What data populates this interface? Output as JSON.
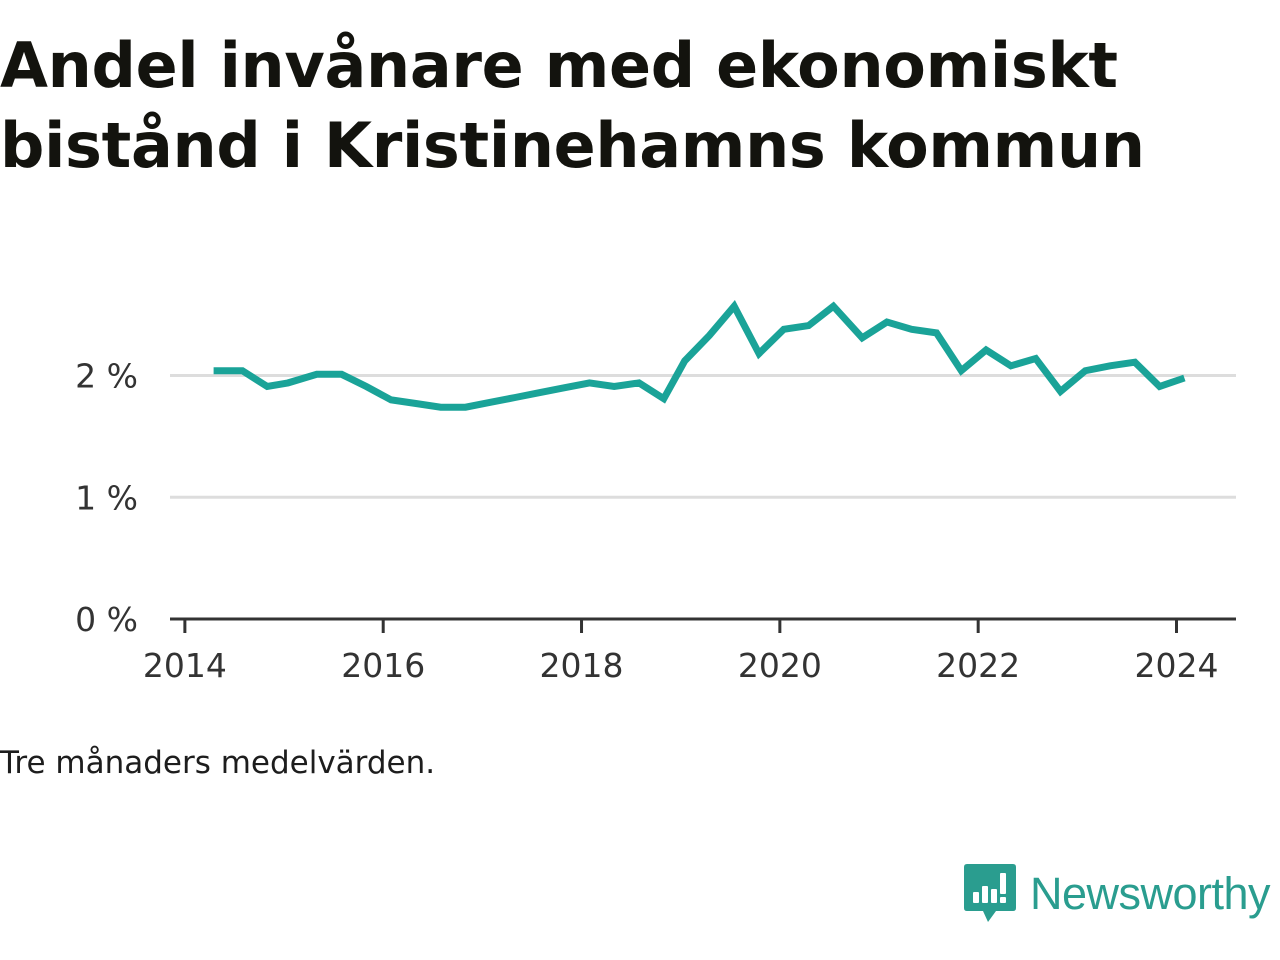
{
  "title": "Andel invånare med ekonomiskt bistånd i Kristinehamns kommun",
  "note": "Tre månaders medelvärden.",
  "brand": {
    "name": "Newsworthy",
    "icon": "newsworthy-logo-icon",
    "color": "#2a9d8f"
  },
  "colors": {
    "line": "#1aa398",
    "grid": "#dddddd",
    "axis": "#333333"
  },
  "chart_data": {
    "type": "line",
    "title": "Andel invånare med ekonomiskt bistånd i Kristinehamns kommun",
    "xlabel": "",
    "ylabel": "",
    "x_ticks": [
      2014,
      2016,
      2018,
      2020,
      2022,
      2024
    ],
    "y_ticks": [
      {
        "value": 0,
        "label": "0 %"
      },
      {
        "value": 1,
        "label": "1 %"
      },
      {
        "value": 2,
        "label": "2 %"
      }
    ],
    "xlim": [
      2013.85,
      2024.6
    ],
    "ylim": [
      0,
      2.9
    ],
    "grid": "horizontal",
    "x": [
      2014.29,
      2014.58,
      2014.83,
      2015.04,
      2015.33,
      2015.58,
      2015.83,
      2016.08,
      2016.33,
      2016.58,
      2016.83,
      2017.08,
      2017.33,
      2017.58,
      2017.83,
      2018.08,
      2018.33,
      2018.58,
      2018.83,
      2019.04,
      2019.29,
      2019.54,
      2019.79,
      2020.04,
      2020.29,
      2020.54,
      2020.83,
      2021.08,
      2021.33,
      2021.58,
      2021.83,
      2022.08,
      2022.33,
      2022.58,
      2022.83,
      2023.08,
      2023.33,
      2023.58,
      2023.83,
      2024.08
    ],
    "series": [
      {
        "values": [
          2.04,
          2.04,
          1.91,
          1.94,
          2.01,
          2.01,
          1.91,
          1.8,
          1.77,
          1.74,
          1.74,
          1.78,
          1.82,
          1.86,
          1.9,
          1.94,
          1.91,
          1.94,
          1.81,
          2.12,
          2.33,
          2.57,
          2.18,
          2.38,
          2.41,
          2.57,
          2.31,
          2.44,
          2.38,
          2.35,
          2.04,
          2.21,
          2.08,
          2.14,
          1.87,
          2.04,
          2.08,
          2.11,
          1.91,
          1.98
        ]
      }
    ]
  }
}
